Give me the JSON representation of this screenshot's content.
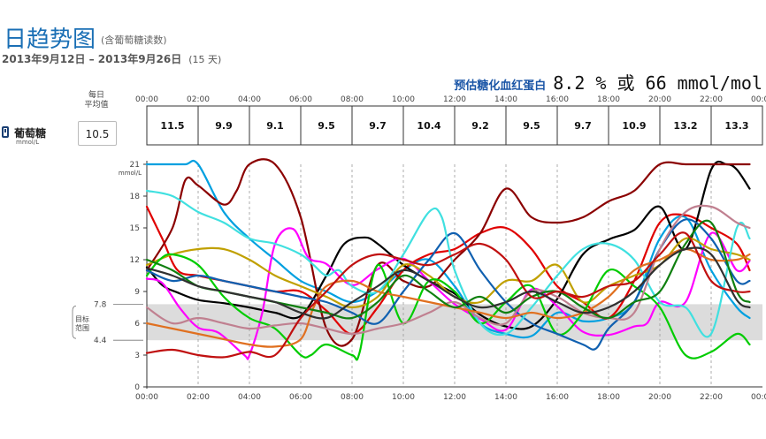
{
  "header": {
    "title": "日趋势图",
    "subtitle": "(含葡萄糖读数)",
    "date_range": "2013年9月12日 – 2013年9月26日",
    "days": "(15 天)",
    "a1c_label": "预估糖化血红蛋白",
    "a1c_value": "8.2 % 或 66 mmol/mol"
  },
  "avg_header": [
    "每日",
    "平均值"
  ],
  "series_label": "葡萄糖",
  "series_unit": "mmol/L",
  "daily_average": "10.5",
  "colors": {
    "target_band": "#dcdcdc",
    "grid": "#999999",
    "series": [
      "#00a0e0",
      "#e00000",
      "#000000",
      "#8b0000",
      "#ff00ff",
      "#c0a000",
      "#00cc00",
      "#1060b0",
      "#40e0e0",
      "#c08090",
      "#e07020",
      "#108010",
      "#c01010",
      "#303030"
    ]
  },
  "chart_data": {
    "type": "line",
    "y_unit": "mmol/L",
    "ylim": [
      0,
      21
    ],
    "yticks": [
      0,
      3,
      6,
      9,
      12,
      15,
      18,
      21
    ],
    "target_range": [
      4.4,
      7.8
    ],
    "target_labels": [
      "7.8",
      "4.4"
    ],
    "target_caption": [
      "目标",
      "范围"
    ],
    "xlim": [
      0,
      24
    ],
    "xticks": [
      "00:00",
      "02:00",
      "04:00",
      "06:00",
      "08:00",
      "10:00",
      "12:00",
      "14:00",
      "16:00",
      "18:00",
      "20:00",
      "22:00",
      "00:00"
    ],
    "bucket_averages": [
      "11.5",
      "9.9",
      "9.1",
      "9.5",
      "9.7",
      "10.4",
      "9.2",
      "9.5",
      "9.7",
      "10.9",
      "13.2",
      "13.3"
    ],
    "series": [
      {
        "x": [
          0,
          0.7,
          1.5,
          2,
          3,
          4,
          5,
          6,
          7,
          8,
          9,
          10,
          11,
          12,
          13,
          14,
          15,
          16,
          17,
          18,
          19,
          20,
          21,
          22,
          23,
          23.5
        ],
        "y": [
          21,
          21,
          21,
          21,
          16.5,
          14,
          12,
          10,
          9,
          8,
          9,
          11,
          12,
          9.5,
          6,
          5,
          4.8,
          7,
          6.2,
          6.5,
          8,
          14,
          16,
          11,
          7.5,
          6.5
        ]
      },
      {
        "x": [
          0,
          0.6,
          1.2,
          2,
          3,
          4,
          5,
          6,
          7,
          8,
          9,
          10,
          11,
          12,
          13,
          14,
          15,
          16,
          17,
          18,
          19,
          20,
          21,
          22,
          23,
          23.5
        ],
        "y": [
          17,
          14,
          11,
          10.5,
          10,
          9.5,
          9,
          9,
          7.2,
          5,
          7.5,
          11,
          12.5,
          13,
          14.5,
          15,
          13,
          9.5,
          8,
          6.5,
          10,
          15.5,
          16.2,
          15,
          13.5,
          11
        ]
      },
      {
        "x": [
          0,
          0.6,
          1.2,
          2,
          3,
          4,
          5,
          6,
          7,
          7.7,
          8.5,
          9,
          10,
          11,
          12,
          13,
          14,
          15,
          16,
          17,
          18,
          19,
          20,
          21,
          22,
          22.6,
          23,
          23.5
        ],
        "y": [
          11.3,
          9.6,
          8.9,
          8.2,
          7.9,
          7.5,
          7.0,
          6.7,
          10.5,
          13.5,
          14.1,
          13.5,
          11.5,
          10.0,
          8.8,
          6.8,
          5.7,
          5.7,
          8.3,
          12.5,
          13.9,
          14.8,
          17.0,
          13.0,
          20.5,
          21,
          20.5,
          18.7
        ]
      },
      {
        "x": [
          0,
          1,
          1.5,
          2,
          3,
          3.5,
          4,
          5,
          6,
          7,
          8,
          9,
          10,
          11,
          12,
          13,
          14,
          15,
          16,
          17,
          18,
          19,
          20,
          21,
          22,
          23,
          23.5
        ],
        "y": [
          11,
          15,
          19.5,
          19,
          17.2,
          18.5,
          21,
          21,
          16,
          5.5,
          4.5,
          11.5,
          10,
          9.5,
          12,
          14.5,
          18.7,
          16,
          15.5,
          16,
          17.5,
          18.5,
          21,
          21,
          21,
          21,
          21
        ]
      },
      {
        "x": [
          0,
          0.6,
          1.3,
          2,
          2.8,
          3.8,
          4,
          4.5,
          5,
          5.7,
          6.3,
          7,
          8,
          9,
          10,
          11,
          12,
          13,
          14,
          15,
          16,
          17,
          18,
          19,
          19.5,
          20,
          21,
          22,
          23,
          23.5
        ],
        "y": [
          10.2,
          9.8,
          7.4,
          5.6,
          5.1,
          3.0,
          3.0,
          7.0,
          13.5,
          14.9,
          12.2,
          11.6,
          9.6,
          11.1,
          12.1,
          10.0,
          7.8,
          6.4,
          5.4,
          9.2,
          7.6,
          5.2,
          4.9,
          5.7,
          6.0,
          8.0,
          8.0,
          14.5,
          11.0,
          11.9
        ]
      },
      {
        "x": [
          0,
          1,
          2,
          3,
          4,
          5,
          6,
          7,
          8,
          9,
          10,
          11,
          12,
          13,
          14,
          15,
          16,
          17,
          18,
          19,
          20,
          21,
          22,
          23,
          23.5
        ],
        "y": [
          11.5,
          12.5,
          13,
          13,
          12,
          10.5,
          9.5,
          8.5,
          7.5,
          8.5,
          11.5,
          10.5,
          8.5,
          8,
          10,
          10,
          11.5,
          8,
          9.5,
          10.5,
          11.5,
          14,
          13,
          12.5,
          12
        ]
      },
      {
        "x": [
          0,
          0.5,
          1,
          2,
          3,
          4,
          5,
          6,
          6.4,
          7,
          8,
          8.3,
          9,
          10,
          11,
          12,
          13,
          14,
          15,
          16,
          17,
          18,
          19,
          20,
          21,
          22,
          23,
          23.5
        ],
        "y": [
          10.5,
          12,
          12.5,
          11.5,
          8.5,
          6.5,
          5.5,
          3,
          3,
          4,
          3,
          3.3,
          11.5,
          6,
          10,
          9,
          6,
          8,
          9.5,
          5,
          7,
          11,
          9.5,
          7.5,
          3,
          3.3,
          5,
          4
        ]
      },
      {
        "x": [
          0,
          1,
          2,
          3,
          4,
          5,
          6,
          7,
          8,
          9,
          10,
          11,
          12,
          13,
          14,
          15,
          16,
          17,
          17.5,
          18,
          19,
          20,
          21,
          22,
          23,
          23.5
        ],
        "y": [
          11,
          10,
          10.5,
          10,
          9.5,
          9,
          8.5,
          8,
          7,
          6,
          9,
          12,
          14.5,
          11,
          8,
          6,
          5,
          4,
          3.6,
          5.5,
          8,
          13,
          15.8,
          14,
          10,
          10
        ]
      },
      {
        "x": [
          0,
          1,
          2,
          3,
          4,
          5,
          6,
          6.5,
          7,
          7.5,
          8,
          9,
          10,
          11,
          11.5,
          12,
          13,
          14,
          15,
          16,
          17,
          18,
          19,
          20,
          21,
          22,
          23,
          23.5
        ],
        "y": [
          18.5,
          18,
          16.5,
          15.5,
          14,
          13.5,
          12.5,
          11.5,
          10.5,
          11,
          9.5,
          9,
          12.5,
          16.5,
          16,
          11,
          6,
          5,
          7.5,
          10.5,
          13,
          13.5,
          12,
          8,
          7.5,
          5,
          15,
          14
        ]
      },
      {
        "x": [
          0,
          1,
          2,
          3,
          4,
          5,
          6,
          7,
          8,
          9,
          10,
          11,
          12,
          13,
          14,
          15,
          16,
          17,
          18,
          19,
          20,
          21,
          22,
          23,
          23.5
        ],
        "y": [
          7.5,
          6,
          6.5,
          6,
          5.5,
          5.8,
          6,
          5.5,
          5,
          5.5,
          6,
          7,
          8,
          6.5,
          6,
          9,
          8.5,
          7,
          6.5,
          7,
          13,
          16.5,
          17,
          15.5,
          15
        ]
      },
      {
        "x": [
          0,
          1,
          2,
          3,
          4,
          5,
          6,
          6.5,
          7,
          8,
          9,
          10,
          11,
          12,
          13,
          14,
          15,
          16,
          17,
          18,
          19,
          20,
          21,
          22,
          23,
          23.5
        ],
        "y": [
          6,
          5.5,
          5,
          4.5,
          4,
          3.8,
          4.5,
          7.5,
          9.5,
          10,
          9,
          8.5,
          8,
          7.5,
          7,
          6.5,
          7,
          6.5,
          7,
          8.5,
          11,
          12,
          13,
          12,
          12,
          12.5
        ]
      },
      {
        "x": [
          0,
          1,
          2,
          3,
          4,
          5,
          6,
          7,
          8,
          9,
          10,
          11,
          12,
          13,
          14,
          15,
          16,
          17,
          18,
          19,
          20,
          21,
          22,
          23,
          23.5
        ],
        "y": [
          12,
          11,
          9.5,
          9,
          8.5,
          8,
          7.5,
          7,
          6.5,
          8,
          10.5,
          9,
          7.5,
          8.5,
          7,
          8.5,
          9,
          7.5,
          6.5,
          8,
          9,
          13.5,
          15.5,
          9,
          8
        ]
      },
      {
        "x": [
          0,
          1,
          2,
          3,
          4,
          5,
          6,
          7,
          8,
          9,
          10,
          11,
          12,
          13,
          14,
          15,
          16,
          17,
          18,
          19,
          20,
          21,
          22,
          23,
          23.5
        ],
        "y": [
          3.2,
          3.5,
          3,
          2.8,
          3.3,
          3.0,
          6.5,
          9,
          11.5,
          12.5,
          12,
          11.5,
          12.5,
          13.5,
          12,
          8.5,
          9,
          8.5,
          9.5,
          10,
          12.5,
          14.5,
          10,
          9,
          9
        ]
      },
      {
        "x": [
          0,
          1,
          2,
          3,
          4,
          5,
          6,
          7,
          8,
          9,
          10,
          11,
          12,
          13,
          14,
          15,
          16,
          17,
          18,
          19,
          20,
          21,
          22,
          23,
          23.5
        ],
        "y": [
          11.2,
          10.5,
          9.5,
          9,
          8.5,
          8,
          7,
          6.5,
          8,
          9.5,
          11,
          10,
          8.5,
          7.5,
          8,
          9,
          8,
          7,
          7.5,
          9,
          11.5,
          13,
          12.5,
          8.2,
          7.5
        ]
      }
    ]
  }
}
